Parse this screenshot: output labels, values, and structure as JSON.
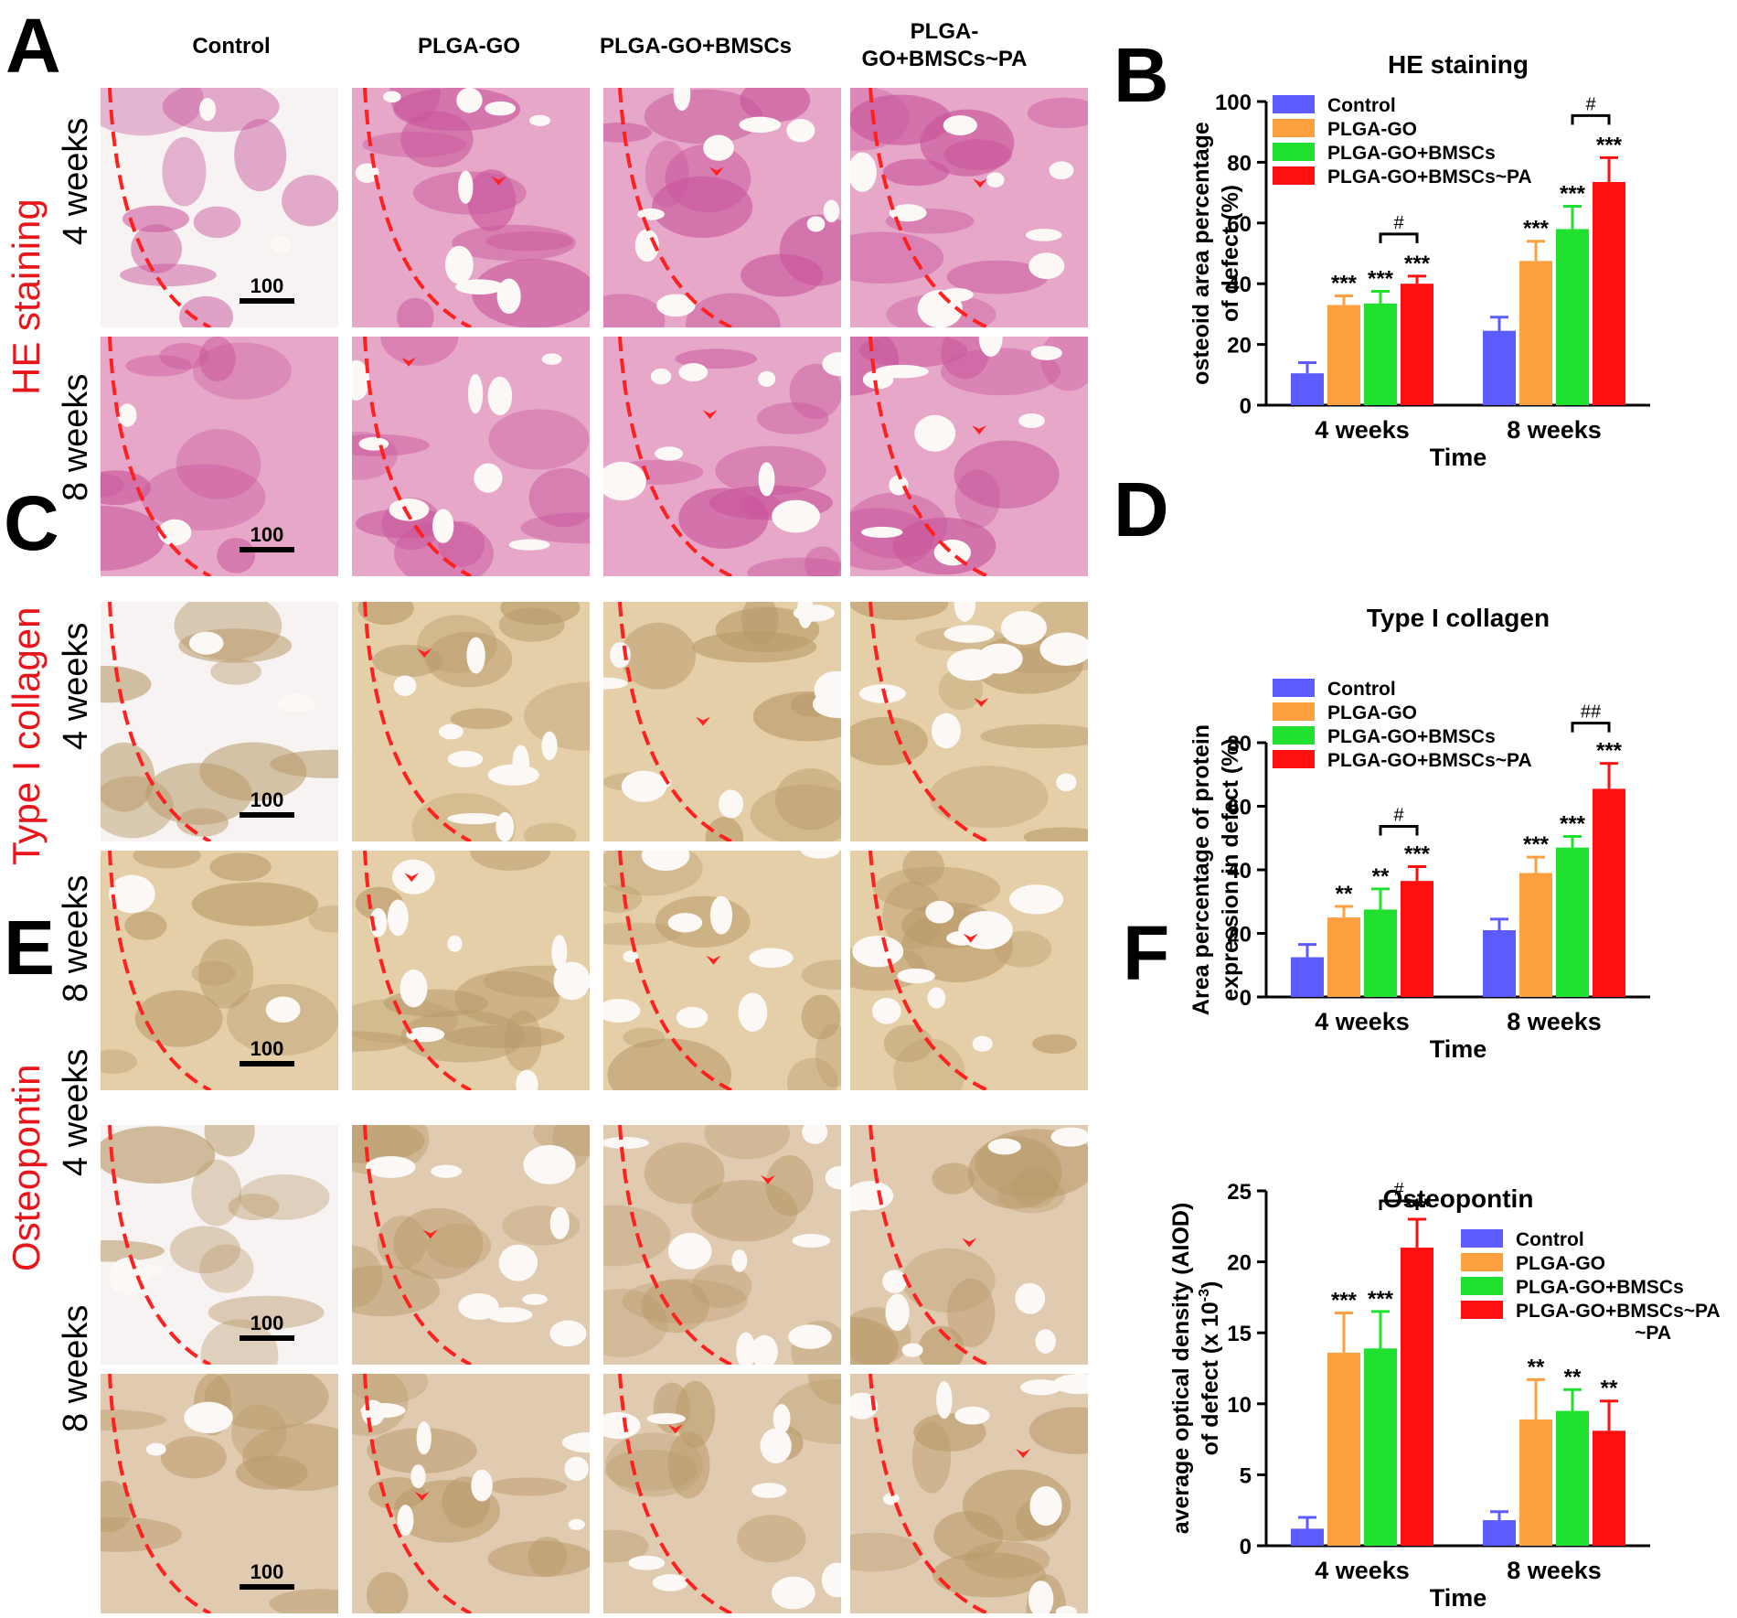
{
  "panels": {
    "A": "A",
    "B": "B",
    "C": "C",
    "D": "D",
    "E": "E",
    "F": "F"
  },
  "columns": [
    "Control",
    "PLGA-GO",
    "PLGA-GO+BMSCs",
    "PLGA-\nGO+BMSCs~PA"
  ],
  "rows": {
    "week4": "4 weeks",
    "week8": "8 weeks"
  },
  "stains": {
    "he": "HE staining",
    "col": "Type I collagen",
    "opn": "Osteopontin"
  },
  "scale_bar": "100",
  "colors": {
    "control": "#5b5bff",
    "plga_go": "#ffa040",
    "bmscs": "#20e030",
    "pa": "#ff1010",
    "he_bg": "#e6a7c8",
    "he_tissue": "#c9559b",
    "col_bg": "#e4cfa8",
    "col_tissue": "#b99a6a",
    "opn_bg": "#e0cbb0",
    "dash": "#ff2020"
  },
  "chart_data": [
    {
      "id": "B",
      "type": "bar",
      "title": "HE staining",
      "xlabel": "Time",
      "ylabel": "osteoid area percentage\nof defect (%)",
      "categories": [
        "4 weeks",
        "8 weeks"
      ],
      "ylim": [
        0,
        100
      ],
      "yticks": [
        "0",
        "20",
        "40",
        "60",
        "80",
        "100"
      ],
      "series": [
        {
          "name": "Control",
          "values": [
            10.5,
            24.5
          ],
          "err": [
            3.5,
            4.5
          ],
          "sig": [
            "",
            ""
          ]
        },
        {
          "name": "PLGA-GO",
          "values": [
            33,
            47.5
          ],
          "err": [
            3,
            6.5
          ],
          "sig": [
            "***",
            "***"
          ]
        },
        {
          "name": "PLGA-GO+BMSCs",
          "values": [
            33.5,
            58
          ],
          "err": [
            4,
            7.5
          ],
          "sig": [
            "***",
            "***"
          ]
        },
        {
          "name": "PLGA-GO+BMSCs~PA",
          "values": [
            40,
            73.5
          ],
          "err": [
            2.5,
            8
          ],
          "sig": [
            "***",
            "***"
          ]
        }
      ],
      "brackets": [
        "#",
        "#"
      ],
      "legend_position": "top-left"
    },
    {
      "id": "D",
      "type": "bar",
      "title": "Type I collagen",
      "xlabel": "Time",
      "ylabel": "Area percentage of protein\nexpression in defect (%)",
      "categories": [
        "4 weeks",
        "8 weeks"
      ],
      "ylim": [
        0,
        80
      ],
      "yticks": [
        "0",
        "20",
        "40",
        "60",
        "80"
      ],
      "series": [
        {
          "name": "Control",
          "values": [
            12.5,
            21
          ],
          "err": [
            4,
            3.5
          ],
          "sig": [
            "",
            ""
          ]
        },
        {
          "name": "PLGA-GO",
          "values": [
            25,
            39
          ],
          "err": [
            3.5,
            5
          ],
          "sig": [
            "**",
            "***"
          ]
        },
        {
          "name": "PLGA-GO+BMSCs",
          "values": [
            27.5,
            47
          ],
          "err": [
            6.5,
            3.5
          ],
          "sig": [
            "**",
            "***"
          ]
        },
        {
          "name": "PLGA-GO+BMSCs~PA",
          "values": [
            36.5,
            65.5
          ],
          "err": [
            4.5,
            8
          ],
          "sig": [
            "***",
            "***"
          ]
        }
      ],
      "brackets": [
        "#",
        "##"
      ],
      "legend_position": "top-left"
    },
    {
      "id": "F",
      "type": "bar",
      "title": "Osteopontin",
      "xlabel": "Time",
      "ylabel": "average optical density (AIOD)\nof defect (x 10",
      "ylabel_sup": "-3",
      "ylabel_end": ")",
      "categories": [
        "4 weeks",
        "8 weeks"
      ],
      "ylim": [
        0,
        25
      ],
      "yticks": [
        "0",
        "5",
        "10",
        "15",
        "20",
        "25"
      ],
      "series": [
        {
          "name": "Control",
          "values": [
            1.2,
            1.8
          ],
          "err": [
            0.8,
            0.6
          ],
          "sig": [
            "",
            ""
          ]
        },
        {
          "name": "PLGA-GO",
          "values": [
            13.6,
            8.9
          ],
          "err": [
            2.8,
            2.8
          ],
          "sig": [
            "***",
            "**"
          ]
        },
        {
          "name": "PLGA-GO+BMSCs",
          "values": [
            13.9,
            9.5
          ],
          "err": [
            2.6,
            1.5
          ],
          "sig": [
            "***",
            "**"
          ]
        },
        {
          "name": "PLGA-GO+BMSCs~PA",
          "values": [
            21,
            8.1
          ],
          "err": [
            2,
            2.1
          ],
          "sig": [
            "***",
            "**"
          ]
        }
      ],
      "legend_last_line2": "~PA",
      "brackets": [
        "#",
        ""
      ],
      "legend_position": "top-right"
    }
  ]
}
